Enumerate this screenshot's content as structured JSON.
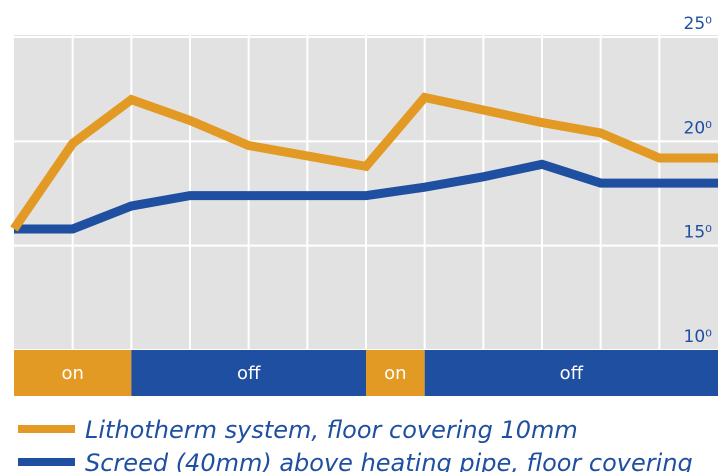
{
  "chart_data": {
    "type": "line",
    "categories": [
      null,
      null,
      null,
      null,
      null,
      null,
      null,
      null,
      null,
      null,
      null,
      null,
      null
    ],
    "series": [
      {
        "name": "Lithotherm system, floor covering 10mm",
        "color": "#e39a25",
        "values": [
          15.8,
          19.9,
          22.0,
          21.0,
          19.8,
          19.3,
          18.8,
          22.1,
          21.5,
          20.9,
          20.4,
          19.2,
          19.2
        ]
      },
      {
        "name": "Screed (40mm) above heating pipe, floor covering",
        "color": "#1f4fa0",
        "values": [
          15.8,
          15.8,
          16.9,
          17.4,
          17.4,
          17.4,
          17.4,
          17.8,
          18.3,
          18.9,
          18.0,
          18.0,
          18.0
        ]
      }
    ],
    "ylim": [
      10,
      25
    ],
    "yticks": [
      {
        "value": 10,
        "label": "10⁰"
      },
      {
        "value": 15,
        "label": "15⁰"
      },
      {
        "value": 20,
        "label": "20⁰"
      },
      {
        "value": 25,
        "label": "25⁰"
      }
    ],
    "grid": true,
    "phases": [
      {
        "label": "on",
        "start": 0,
        "end": 2,
        "color": "#e39a25"
      },
      {
        "label": "off",
        "start": 2,
        "end": 6,
        "color": "#1f4fa0"
      },
      {
        "label": "on",
        "start": 6,
        "end": 7,
        "color": "#e39a25"
      },
      {
        "label": "off",
        "start": 7,
        "end": 12,
        "color": "#1f4fa0"
      }
    ]
  }
}
